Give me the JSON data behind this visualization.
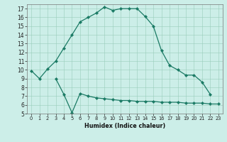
{
  "title": "",
  "xlabel": "Humidex (Indice chaleur)",
  "background_color": "#cceee8",
  "line_color": "#1a7a64",
  "x": [
    0,
    1,
    2,
    3,
    4,
    5,
    6,
    7,
    8,
    9,
    10,
    11,
    12,
    13,
    14,
    15,
    16,
    17,
    18,
    19,
    20,
    21,
    22,
    23
  ],
  "curve1": [
    9.9,
    9.0,
    10.1,
    11.0,
    12.5,
    14.0,
    15.5,
    16.0,
    16.5,
    17.2,
    16.8,
    17.0,
    17.0,
    17.0,
    16.1,
    15.0,
    12.2,
    10.5,
    10.0,
    9.4,
    9.4,
    8.6,
    7.2,
    null
  ],
  "curve2": [
    null,
    null,
    null,
    9.0,
    7.2,
    5.1,
    7.3,
    7.0,
    6.8,
    6.7,
    6.6,
    6.5,
    6.5,
    6.4,
    6.4,
    6.4,
    6.3,
    6.3,
    6.3,
    6.2,
    6.2,
    6.2,
    6.1,
    6.1
  ],
  "ylim": [
    5,
    17.5
  ],
  "xlim": [
    -0.5,
    23.5
  ],
  "yticks": [
    5,
    6,
    7,
    8,
    9,
    10,
    11,
    12,
    13,
    14,
    15,
    16,
    17
  ],
  "xticks": [
    0,
    1,
    2,
    3,
    4,
    5,
    6,
    7,
    8,
    9,
    10,
    11,
    12,
    13,
    14,
    15,
    16,
    17,
    18,
    19,
    20,
    21,
    22,
    23
  ],
  "ytick_fontsize": 5.5,
  "xtick_fontsize": 4.8,
  "xlabel_fontsize": 5.8,
  "linewidth": 0.9,
  "markersize": 2.2
}
